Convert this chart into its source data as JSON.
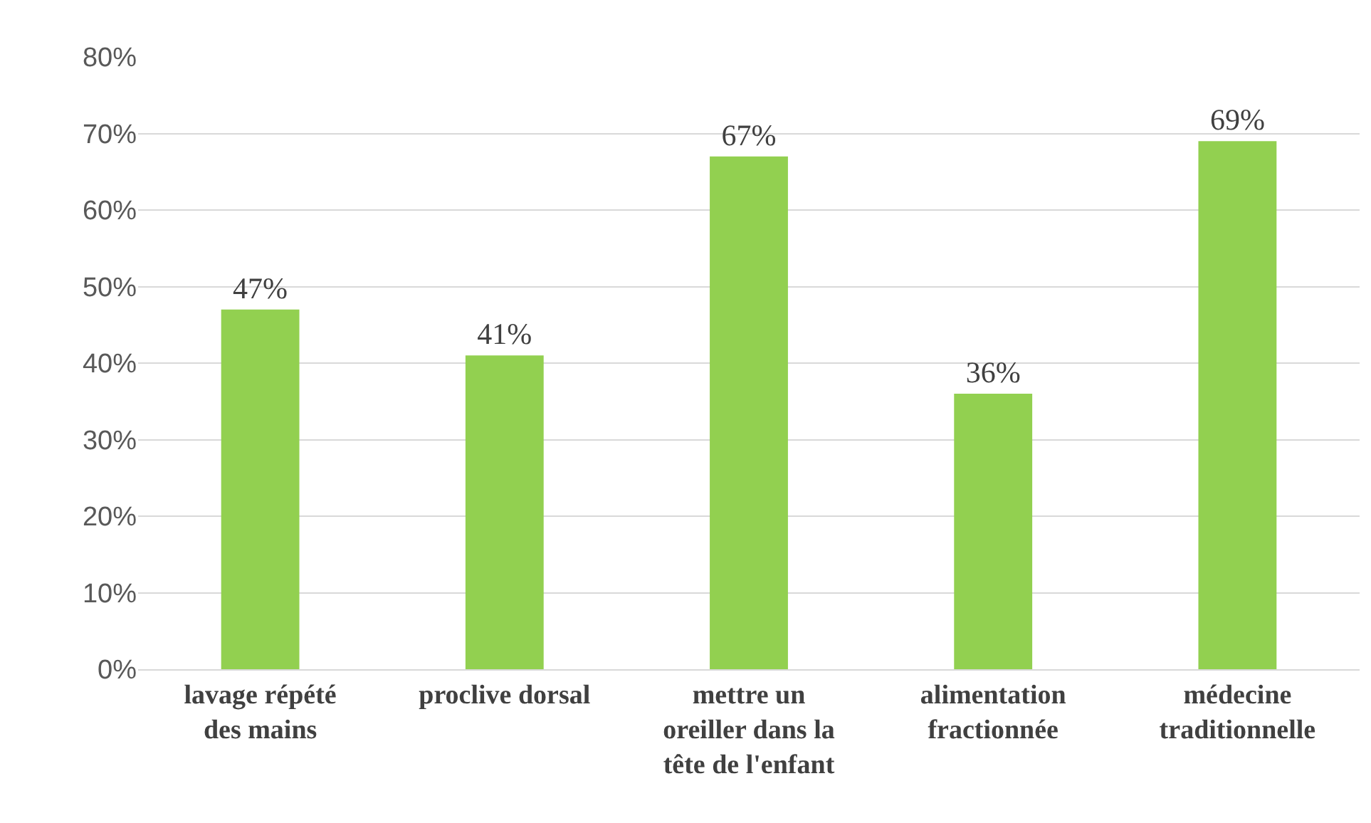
{
  "chart_data": {
    "type": "bar",
    "categories": [
      "lavage répété des mains",
      "proclive dorsal",
      "mettre un oreiller dans la tête de l'enfant",
      "alimentation fractionnée",
      "médecine traditionnelle"
    ],
    "values": [
      47,
      41,
      67,
      36,
      69
    ],
    "color": "#92d050",
    "value_labels": [
      "47%",
      "41%",
      "67%",
      "36%",
      "69%"
    ],
    "ylim": [
      0,
      80
    ],
    "yticks": [
      {
        "value": 0,
        "label": "0%"
      },
      {
        "value": 10,
        "label": "10%"
      },
      {
        "value": 20,
        "label": "20%"
      },
      {
        "value": 30,
        "label": "30%"
      },
      {
        "value": 40,
        "label": "40%"
      },
      {
        "value": 50,
        "label": "50%"
      },
      {
        "value": 60,
        "label": "60%"
      },
      {
        "value": 70,
        "label": "70%"
      },
      {
        "value": 80,
        "label": "80%"
      }
    ],
    "grid": "y",
    "legend": false
  }
}
